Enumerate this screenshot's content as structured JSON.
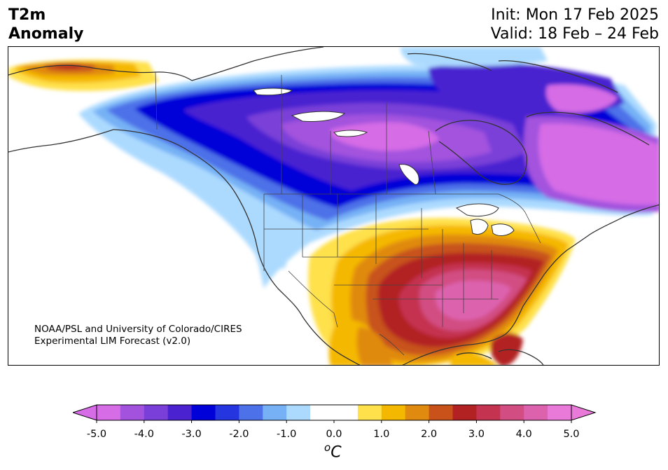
{
  "header": {
    "title_line1": "T2m",
    "title_line2": "Anomaly",
    "init": "Init: Mon 17 Feb 2025",
    "valid": "Valid: 18 Feb – 24 Feb"
  },
  "credit": {
    "line1": "NOAA/PSL and University of Colorado/CIRES",
    "line2": "Experimental LIM Forecast (v2.0)"
  },
  "colorbar": {
    "ticks": [
      "-5.0",
      "-4.0",
      "-3.0",
      "-2.0",
      "-1.0",
      "0.0",
      "1.0",
      "2.0",
      "3.0",
      "4.0",
      "5.0"
    ],
    "unit_prefix": "o",
    "unit": "C",
    "range": [
      -5.0,
      5.0
    ],
    "step": 0.5,
    "colors": [
      "#d66ce6",
      "#a352de",
      "#7a3fd8",
      "#4a22d0",
      "#0000d8",
      "#2535e0",
      "#4d71e8",
      "#76b1f5",
      "#acdaff",
      "#ffffff",
      "#ffffff",
      "#ffe14c",
      "#f5b800",
      "#e08a10",
      "#c8521a",
      "#b22222",
      "#c43350",
      "#d24e82",
      "#dd62ae",
      "#e97ad9"
    ],
    "extend_low_color": "#d66ce6",
    "extend_high_color": "#e97ad9"
  },
  "map": {
    "region": "North America",
    "field": "2 m temperature anomaly",
    "features": [
      "coastlines",
      "country borders",
      "US state borders",
      "Canadian province borders",
      "Great Lakes"
    ]
  }
}
